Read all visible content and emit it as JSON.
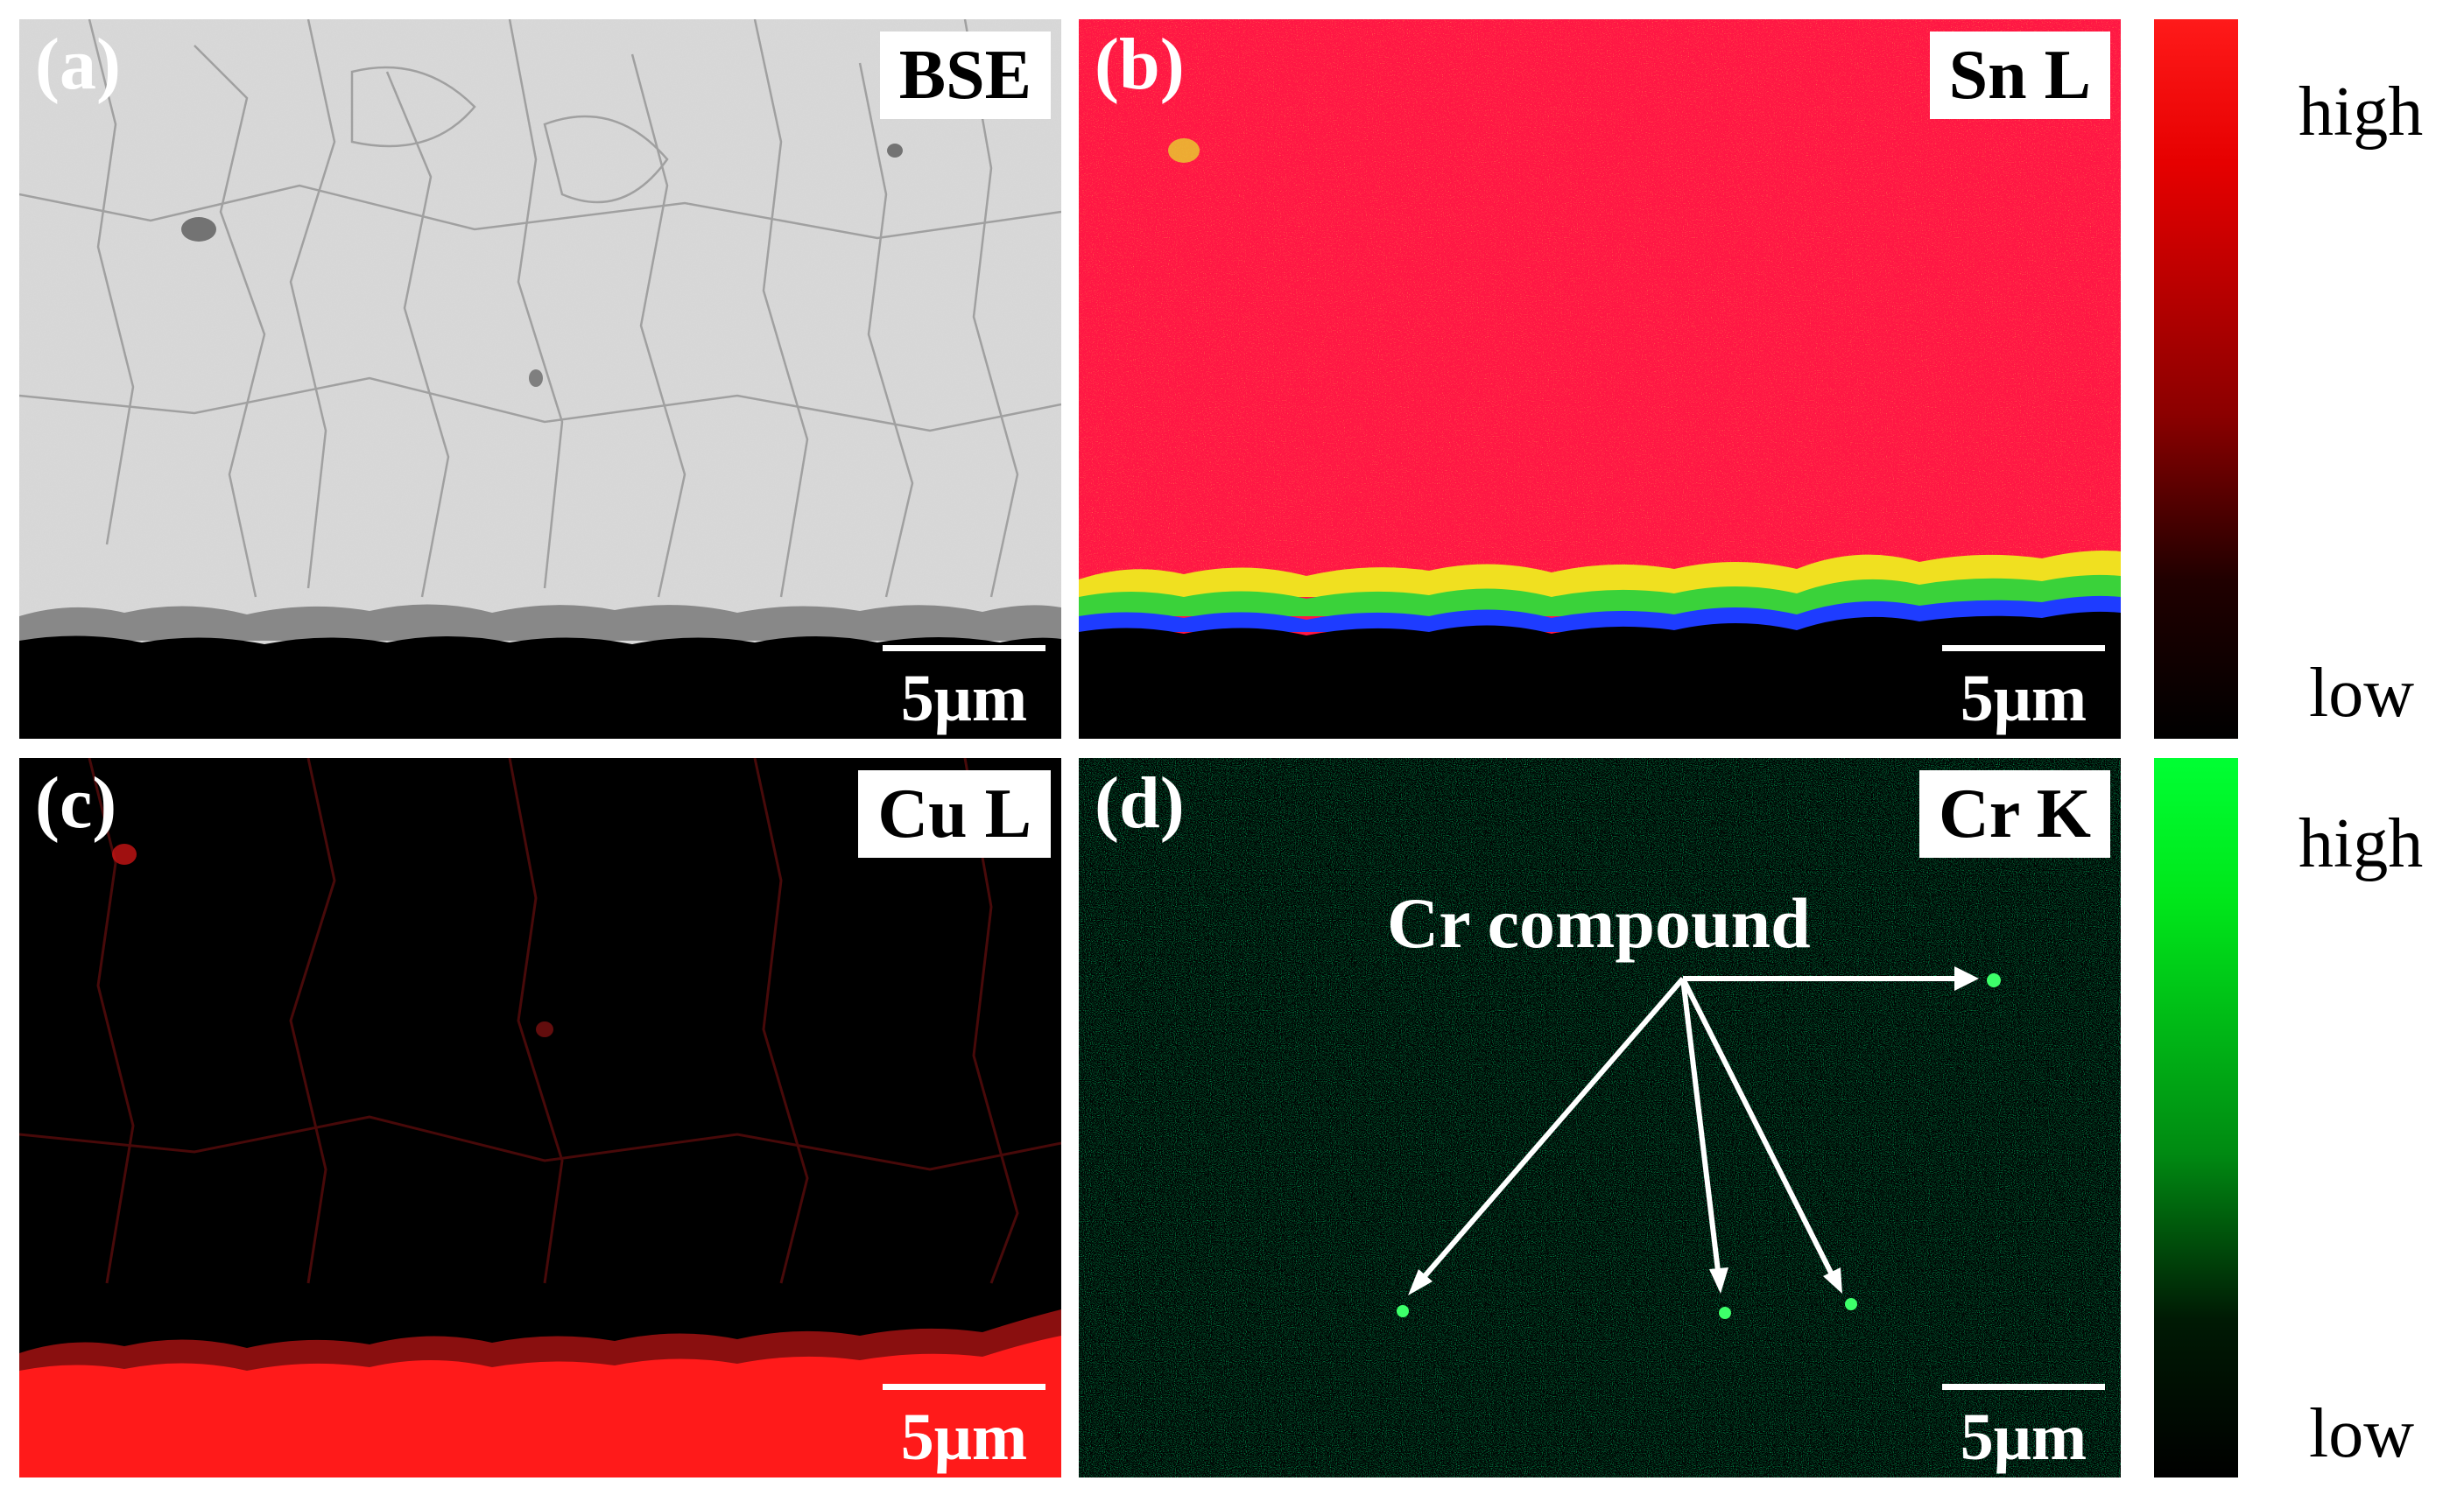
{
  "panels": {
    "a": {
      "letter": "(a)",
      "tag": "BSE",
      "scale": "5μm"
    },
    "b": {
      "letter": "(b)",
      "tag": "Sn L",
      "scale": "5μm"
    },
    "c": {
      "letter": "(c)",
      "tag": "Cu L",
      "scale": "5μm"
    },
    "d": {
      "letter": "(d)",
      "tag": "Cr K",
      "scale": "5μm",
      "annotation": "Cr compound"
    }
  },
  "colorbars": {
    "sn": {
      "high": "high",
      "low": "low",
      "color_high": "#ff0000",
      "color_low": "#000000"
    },
    "cr": {
      "high": "high",
      "low": "low",
      "color_high": "#00ff22",
      "color_low": "#000000"
    }
  },
  "colors": {
    "sn_map": "#ff1744",
    "cu_map": "#ff1a1a",
    "cr_dots": "#00c83a",
    "bse_gray": "#d8d8d8"
  }
}
